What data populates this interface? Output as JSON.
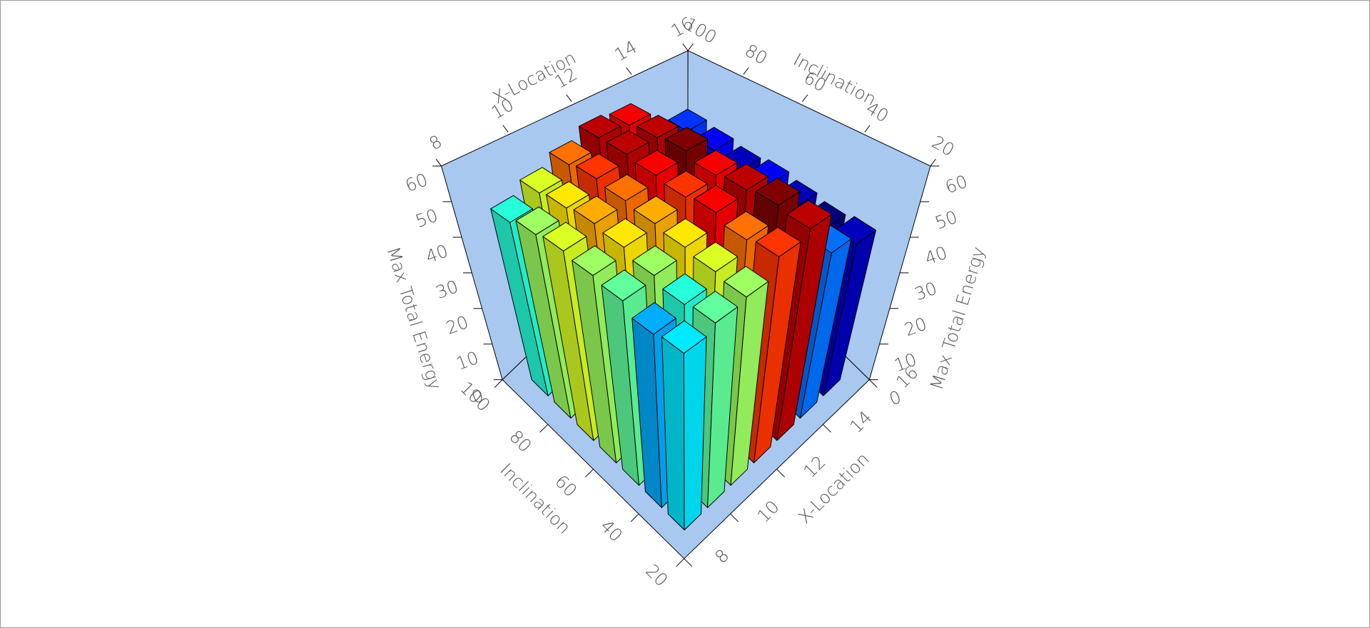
{
  "chart_data": {
    "type": "bar3d",
    "x_label": "X-Location",
    "y_label": "Inclination",
    "z_label": "Max Total Energy",
    "x": [
      9,
      10,
      11,
      12,
      13,
      14,
      15
    ],
    "y": [
      30,
      40,
      50,
      60,
      70,
      80,
      90
    ],
    "values": [
      [
        47,
        49,
        50,
        55,
        57,
        45,
        42
      ],
      [
        46,
        48,
        51,
        54,
        58,
        44,
        41
      ],
      [
        49,
        50,
        52,
        56,
        57,
        43,
        42
      ],
      [
        50,
        52,
        53,
        55,
        56,
        44,
        43
      ],
      [
        51,
        53,
        54,
        56,
        58,
        45,
        42
      ],
      [
        50,
        52,
        55,
        57,
        57,
        46,
        43
      ],
      [
        48,
        51,
        54,
        57,
        56,
        45,
        44
      ]
    ],
    "xlim": [
      8,
      16
    ],
    "xticks": [
      8,
      10,
      12,
      14,
      16
    ],
    "ylim": [
      20,
      100
    ],
    "yticks": [
      20,
      40,
      60,
      80,
      100
    ],
    "zlim": [
      0,
      60
    ],
    "zticks": [
      0,
      10,
      20,
      30,
      40,
      50,
      60
    ],
    "wall_color": "#a8c8f0",
    "colormap": "jet"
  }
}
